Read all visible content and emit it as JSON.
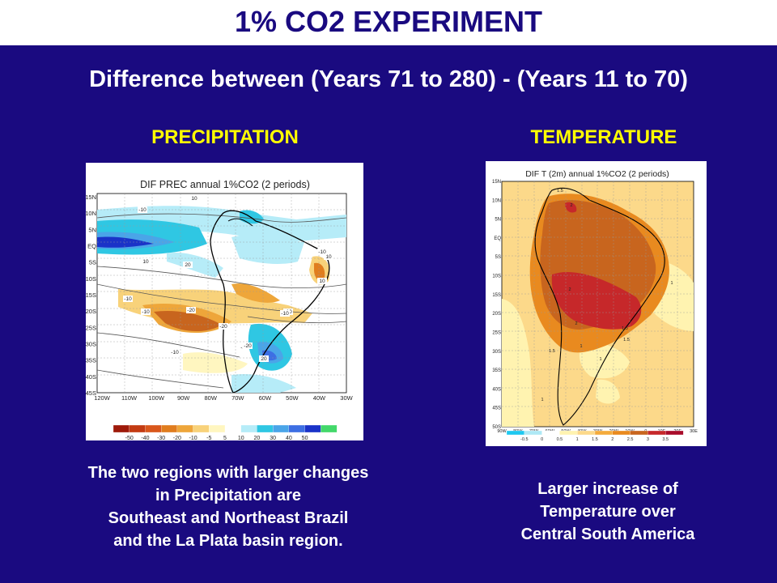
{
  "slide": {
    "title": "1% CO2  EXPERIMENT",
    "subtitle": "Difference between (Years 71 to 280) - (Years 11 to 70)"
  },
  "left": {
    "header": "PRECIPITATION",
    "map_title": "DIF PREC annual 1%CO2 (2 periods)",
    "lat_labels": [
      "15N",
      "10N",
      "5N",
      "EQ",
      "5S",
      "10S",
      "15S",
      "20S",
      "25S",
      "30S",
      "35S",
      "40S",
      "45S"
    ],
    "lon_labels": [
      "120W",
      "110W",
      "100W",
      "90W",
      "80W",
      "70W",
      "60W",
      "50W",
      "40W",
      "30W"
    ],
    "contour_labels": [
      "10",
      "-10",
      "10",
      "20",
      "-10",
      "-10",
      "-20",
      "-10",
      "-20",
      "-10",
      "-20",
      "10",
      "-10",
      "-10",
      "20",
      "-20",
      "10"
    ],
    "legend": {
      "labels": [
        "-50",
        "-40",
        "-30",
        "-20",
        "-10",
        "-5",
        "5",
        "10",
        "20",
        "30",
        "40",
        "50"
      ],
      "colors": [
        "#9e1a0a",
        "#c33b12",
        "#d9571c",
        "#e07d1e",
        "#eea63a",
        "#f8d27a",
        "#fff6c0",
        "#ffffff",
        "#b6ecf8",
        "#2fc7e3",
        "#4aa5e8",
        "#3d6fe3",
        "#1a33c8",
        "#43d86a"
      ]
    },
    "caption": [
      "The two regions with larger changes",
      "in Precipitation are",
      "Southeast and Northeast Brazil",
      "and the La Plata basin region."
    ]
  },
  "right": {
    "header": "TEMPERATURE",
    "map_title": "DIF T (2m) annual 1%CO2 (2 periods)",
    "lat_labels": [
      "15N",
      "10N",
      "5N",
      "EQ",
      "5S",
      "10S",
      "15S",
      "20S",
      "25S",
      "30S",
      "35S",
      "40S",
      "45S",
      "50S"
    ],
    "lon_labels": [
      "90W",
      "80W",
      "70W",
      "60W",
      "50W",
      "40W",
      "30W",
      "20W",
      "10W",
      "0",
      "10E",
      "20E",
      "30E"
    ],
    "contour_labels": [
      "1.5",
      "2",
      "1",
      "2",
      "2",
      "1.5",
      "1",
      "1.5",
      "1",
      "1.5",
      "1"
    ],
    "legend": {
      "labels": [
        "-0.5",
        "0",
        "0.5",
        "1",
        "1.5",
        "2",
        "2.5",
        "3",
        "3.5"
      ],
      "colors": [
        "#1ec8f0",
        "#aee8f5",
        "#ffffff",
        "#fff3b0",
        "#fcd98a",
        "#f4ab3c",
        "#e98a1f",
        "#c8651e",
        "#c6282a",
        "#a80c2a"
      ]
    },
    "caption": [
      "Larger increase of",
      "Temperature over",
      "Central South America"
    ]
  }
}
